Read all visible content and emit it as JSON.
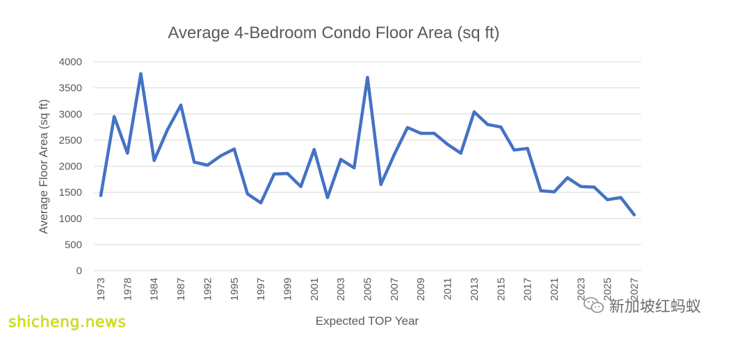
{
  "chart_data": {
    "type": "line",
    "title": "Average 4-Bedroom Condo Floor Area (sq ft)",
    "xlabel": "Expected TOP Year",
    "ylabel": "Average Floor Area (sq ft)",
    "ylim": [
      0,
      4000
    ],
    "yticks": [
      0,
      500,
      1000,
      1500,
      2000,
      2500,
      3000,
      3500,
      4000
    ],
    "grid": true,
    "x_tick_labels": [
      "1973",
      "1978",
      "1984",
      "1987",
      "1992",
      "1995",
      "1997",
      "1999",
      "2001",
      "2003",
      "2005",
      "2007",
      "2009",
      "2011",
      "2013",
      "2015",
      "2017",
      "2021",
      "2023",
      "2025",
      "2027"
    ],
    "x_tick_positions": [
      0,
      2,
      4,
      6,
      8,
      10,
      12,
      14,
      16,
      18,
      20,
      22,
      24,
      26,
      28,
      30,
      32,
      34,
      36,
      38,
      40
    ],
    "series": [
      {
        "values": [
          1440,
          2950,
          2250,
          3770,
          2110,
          2700,
          3170,
          2080,
          2020,
          2200,
          2330,
          1470,
          1300,
          1850,
          1860,
          1610,
          2320,
          1400,
          2130,
          1970,
          3700,
          1650,
          2220,
          2740,
          2630,
          2630,
          2420,
          2250,
          3040,
          2800,
          2750,
          2310,
          2340,
          1530,
          1510,
          1780,
          1610,
          1600,
          1360,
          1400,
          1070
        ]
      }
    ],
    "color": "#4472c4"
  },
  "watermarks": {
    "left": "shicheng.news",
    "right": "新加坡红蚂蚁",
    "right_icon": "wechat-icon"
  }
}
